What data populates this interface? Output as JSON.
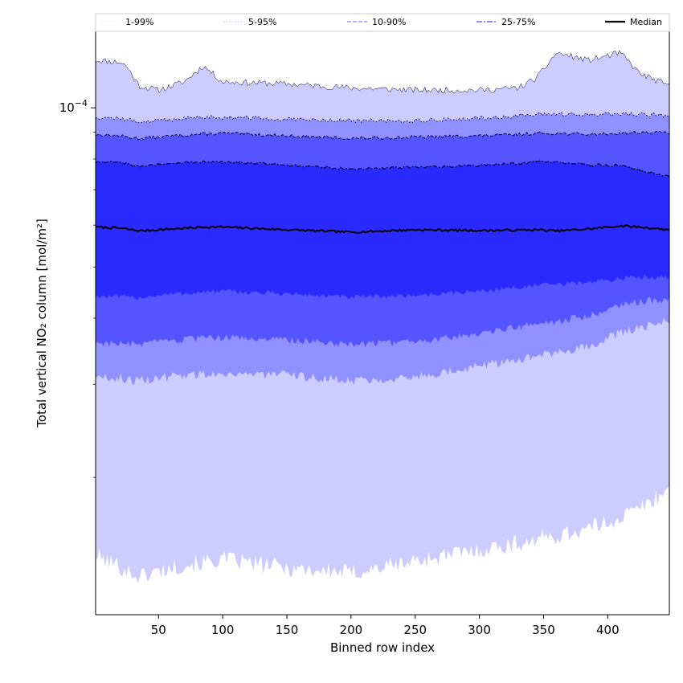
{
  "chart_data": {
    "type": "area",
    "title": "",
    "xlabel": "Binned row index",
    "ylabel": "Total vertical NO₂ column [mol/m²]",
    "yscale": "log",
    "xlim": [
      1,
      448
    ],
    "ylim": [
      1.1e-05,
      0.00014
    ],
    "x_ticks": [
      50,
      100,
      150,
      200,
      250,
      300,
      350,
      400
    ],
    "y_major_ticks": [
      {
        "value": 0.0001,
        "label": "10",
        "exponent": "−4"
      }
    ],
    "y_minor_ticks": [
      2e-05,
      3e-05,
      4e-05,
      5e-05,
      6e-05,
      7e-05,
      8e-05,
      9e-05
    ],
    "grid": false,
    "legend_position": "top",
    "x": [
      1,
      20,
      25,
      35,
      50,
      70,
      85,
      100,
      150,
      200,
      250,
      300,
      330,
      345,
      360,
      385,
      410,
      425,
      448
    ],
    "bands": [
      {
        "name": "1-99%",
        "color": "#ccccff",
        "lower": [
          1.42e-05,
          1.36e-05,
          1.33e-05,
          1.3e-05,
          1.33e-05,
          1.37e-05,
          1.38e-05,
          1.4e-05,
          1.35e-05,
          1.32e-05,
          1.39e-05,
          1.46e-05,
          1.5e-05,
          1.53e-05,
          1.55e-05,
          1.6e-05,
          1.68e-05,
          1.75e-05,
          1.9e-05
        ],
        "upper": [
          0.000123,
          0.000122,
          0.00012,
          0.00011,
          0.000108,
          0.000112,
          0.00012,
          0.000112,
          0.000111,
          0.000109,
          0.000108,
          0.000108,
          0.000109,
          0.000114,
          0.000127,
          0.000123,
          0.000127,
          0.000116,
          0.00011
        ]
      },
      {
        "name": "5-95%",
        "color": "#9090ff",
        "lower": [
          3.1e-05,
          3.08e-05,
          3.06e-05,
          3.05e-05,
          3.08e-05,
          3.12e-05,
          3.14e-05,
          3.15e-05,
          3.12e-05,
          3.05e-05,
          3.1e-05,
          3.25e-05,
          3.35e-05,
          3.4e-05,
          3.42e-05,
          3.55e-05,
          3.75e-05,
          3.85e-05,
          3.95e-05
        ]
      },
      {
        "name": "10-90%",
        "color": "#5555ff",
        "lower": [
          3.6e-05,
          3.58e-05,
          3.57e-05,
          3.57e-05,
          3.6e-05,
          3.64e-05,
          3.66e-05,
          3.68e-05,
          3.64e-05,
          3.58e-05,
          3.6e-05,
          3.75e-05,
          3.85e-05,
          3.9e-05,
          3.93e-05,
          4.05e-05,
          4.25e-05,
          4.3e-05,
          4.35e-05
        ]
      },
      {
        "name": "25-75%",
        "color": "#2a2aff",
        "lower": [
          4.4e-05,
          4.39e-05,
          4.38e-05,
          4.38e-05,
          4.42e-05,
          4.46e-05,
          4.48e-05,
          4.5e-05,
          4.45e-05,
          4.38e-05,
          4.42e-05,
          4.5e-05,
          4.58e-05,
          4.62e-05,
          4.63e-05,
          4.68e-05,
          4.75e-05,
          4.78e-05,
          4.8e-05
        ]
      }
    ],
    "percentile_lines": [
      {
        "name": "99%",
        "values": [
          0.000123,
          0.000122,
          0.00012,
          0.00011,
          0.000108,
          0.000112,
          0.00012,
          0.000112,
          0.000111,
          0.000109,
          0.000108,
          0.000108,
          0.000109,
          0.000114,
          0.000127,
          0.000123,
          0.000127,
          0.000116,
          0.00011
        ]
      },
      {
        "name": "95%",
        "values": [
          9.6e-05,
          9.55e-05,
          9.5e-05,
          9.4e-05,
          9.45e-05,
          9.55e-05,
          9.6e-05,
          9.6e-05,
          9.5e-05,
          9.45e-05,
          9.45e-05,
          9.55e-05,
          9.65e-05,
          9.7e-05,
          9.72e-05,
          9.7e-05,
          9.72e-05,
          9.72e-05,
          9.65e-05
        ]
      },
      {
        "name": "90%",
        "values": [
          8.9e-05,
          8.85e-05,
          8.8e-05,
          8.75e-05,
          8.8e-05,
          8.88e-05,
          8.92e-05,
          8.95e-05,
          8.85e-05,
          8.75e-05,
          8.8e-05,
          8.85e-05,
          8.9e-05,
          8.95e-05,
          8.95e-05,
          8.9e-05,
          8.95e-05,
          8.98e-05,
          8.98e-05
        ]
      },
      {
        "name": "75%",
        "values": [
          7.9e-05,
          7.92e-05,
          7.85e-05,
          7.75e-05,
          7.8e-05,
          7.88e-05,
          7.9e-05,
          7.92e-05,
          7.8e-05,
          7.65e-05,
          7.72e-05,
          7.78e-05,
          7.85e-05,
          7.9e-05,
          7.88e-05,
          7.8e-05,
          7.78e-05,
          7.62e-05,
          7.4e-05
        ]
      }
    ],
    "median": {
      "name": "Median",
      "color": "#000000",
      "values": [
        5.95e-05,
        5.92e-05,
        5.9e-05,
        5.85e-05,
        5.88e-05,
        5.92e-05,
        5.95e-05,
        5.95e-05,
        5.88e-05,
        5.82e-05,
        5.88e-05,
        5.86e-05,
        5.87e-05,
        5.88e-05,
        5.85e-05,
        5.9e-05,
        5.98e-05,
        5.95e-05,
        5.88e-05
      ]
    },
    "legend": [
      {
        "label": "1-99%",
        "color": "#e6e6ff",
        "style": "solid",
        "width": 0.5
      },
      {
        "label": "5-95%",
        "color": "#b8b8ff",
        "style": "dotted",
        "width": 1
      },
      {
        "label": "10-90%",
        "color": "#8080ff",
        "style": "dashed",
        "width": 1.2
      },
      {
        "label": "25-75%",
        "color": "#4444ff",
        "style": "dashdot",
        "width": 1.3
      },
      {
        "label": "Median",
        "color": "#000000",
        "style": "solid",
        "width": 2.2
      }
    ]
  }
}
